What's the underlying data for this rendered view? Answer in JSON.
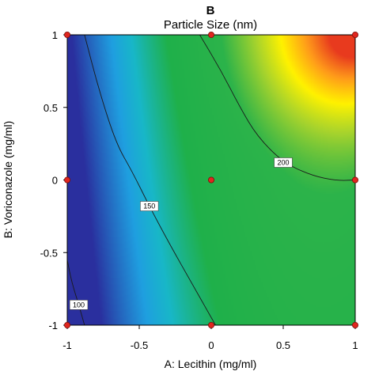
{
  "panel_label": "B",
  "chart_data": {
    "type": "heatmap",
    "title": "Particle Size (nm)",
    "xlabel": "A: Lecithin (mg/ml)",
    "ylabel": "B: Voriconazole (mg/ml)",
    "xlim": [
      -1,
      1
    ],
    "ylim": [
      -1,
      1
    ],
    "x_ticks": [
      "-1",
      "-0.5",
      "0",
      "0.5",
      "1"
    ],
    "y_ticks": [
      "-1",
      "-0.5",
      "0",
      "0.5",
      "1"
    ],
    "colorscale": [
      "#2a2f9e",
      "#1f9fe0",
      "#18b7c8",
      "#1fb04a",
      "#2cb34a",
      "#a9d42c",
      "#fff200",
      "#ff9a1a",
      "#e83a1e"
    ],
    "contours": [
      {
        "label": "100",
        "value": 100,
        "points": [
          [
            -1,
            -0.55
          ],
          [
            -0.97,
            -0.7
          ],
          [
            -0.92,
            -0.86
          ],
          [
            -0.88,
            -1
          ]
        ]
      },
      {
        "label": "150",
        "value": 150,
        "points": [
          [
            -0.88,
            1
          ],
          [
            -0.78,
            0.62
          ],
          [
            -0.66,
            0.25
          ],
          [
            -0.55,
            0.06
          ],
          [
            -0.43,
            -0.18
          ],
          [
            -0.29,
            -0.44
          ],
          [
            -0.13,
            -0.72
          ],
          [
            0.03,
            -1
          ]
        ]
      },
      {
        "label": "200",
        "value": 200,
        "points": [
          [
            -0.08,
            1
          ],
          [
            0.07,
            0.75
          ],
          [
            0.2,
            0.5
          ],
          [
            0.32,
            0.3
          ],
          [
            0.5,
            0.12
          ],
          [
            0.7,
            0.03
          ],
          [
            0.87,
            -0.005
          ],
          [
            1,
            0
          ]
        ]
      }
    ],
    "design_points": [
      [
        -1,
        1
      ],
      [
        0,
        1
      ],
      [
        1,
        1
      ],
      [
        -1,
        0
      ],
      [
        0,
        0
      ],
      [
        1,
        0
      ],
      [
        -1,
        -1
      ],
      [
        0,
        -1
      ],
      [
        1,
        -1
      ]
    ]
  }
}
